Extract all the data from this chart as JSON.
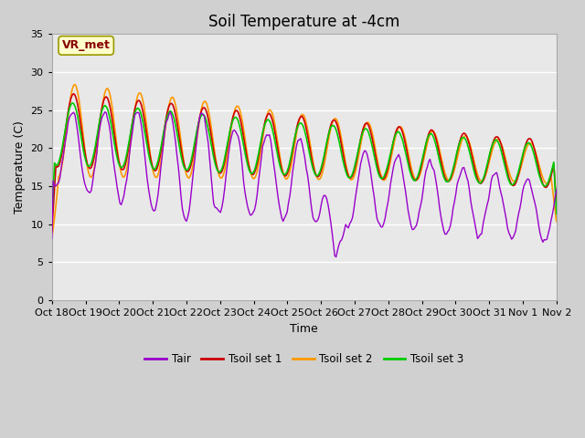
{
  "title": "Soil Temperature at -4cm",
  "xlabel": "Time",
  "ylabel": "Temperature (C)",
  "ylim": [
    0,
    35
  ],
  "n_days": 15.5,
  "tick_labels": [
    "Oct 18",
    "Oct 19",
    "Oct 20",
    "Oct 21",
    "Oct 22",
    "Oct 23",
    "Oct 24",
    "Oct 25",
    "Oct 26",
    "Oct 27",
    "Oct 28",
    "Oct 29",
    "Oct 30",
    "Oct 31",
    "Nov 1",
    "Nov 2"
  ],
  "yticks": [
    0,
    5,
    10,
    15,
    20,
    25,
    30,
    35
  ],
  "colors": {
    "Tair": "#9900cc",
    "Tsoil1": "#cc0000",
    "Tsoil2": "#ff9900",
    "Tsoil3": "#00cc00"
  },
  "legend_labels": [
    "Tair",
    "Tsoil set 1",
    "Tsoil set 2",
    "Tsoil set 3"
  ],
  "annotation_text": "VR_met",
  "annotation_color": "#880000",
  "annotation_bg": "#ffffcc",
  "annotation_edge": "#999900",
  "fig_bg": "#d0d0d0",
  "plot_bg": "#e8e8e8",
  "title_fontsize": 12,
  "axis_fontsize": 9,
  "tick_fontsize": 8
}
